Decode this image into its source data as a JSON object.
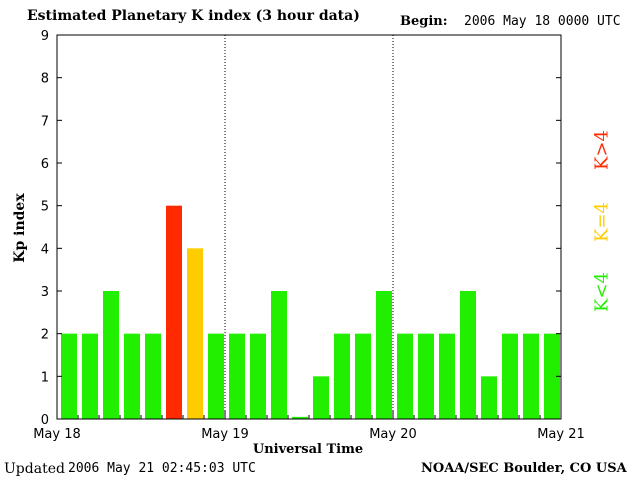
{
  "header": {
    "title": "Estimated Planetary K index (3 hour data)",
    "begin_label": "Begin:",
    "begin_value": "2006 May 18 0000 UTC"
  },
  "footer": {
    "updated_label": "Updated",
    "updated_value": "2006 May 21 02:45:03 UTC",
    "credit": "NOAA/SEC Boulder, CO USA"
  },
  "legend": {
    "high": {
      "text": "K>4",
      "color": "#ff2a00"
    },
    "equal": {
      "text": "K=4",
      "color": "#ffcc00"
    },
    "low": {
      "text": "K<4",
      "color": "#22ee00"
    }
  },
  "chart_data": {
    "type": "bar",
    "title": "Estimated Planetary K index (3 hour data)",
    "xlabel": "Universal Time",
    "ylabel": "Kp index",
    "ylim": [
      0,
      9
    ],
    "yticks": [
      0,
      1,
      2,
      3,
      4,
      5,
      6,
      7,
      8,
      9
    ],
    "day_labels": [
      "May 18",
      "May 19",
      "May 20",
      "May 21"
    ],
    "interval_hours": 3,
    "values": [
      2,
      2,
      3,
      2,
      2,
      5,
      4,
      2,
      2,
      2,
      3,
      0.05,
      1,
      2,
      2,
      3,
      2,
      2,
      2,
      3,
      1,
      2,
      2,
      2
    ],
    "colors": {
      "low": "#22ee00",
      "equal": "#ffcc00",
      "high": "#ff2a00"
    },
    "day_dividers": "dotted"
  }
}
